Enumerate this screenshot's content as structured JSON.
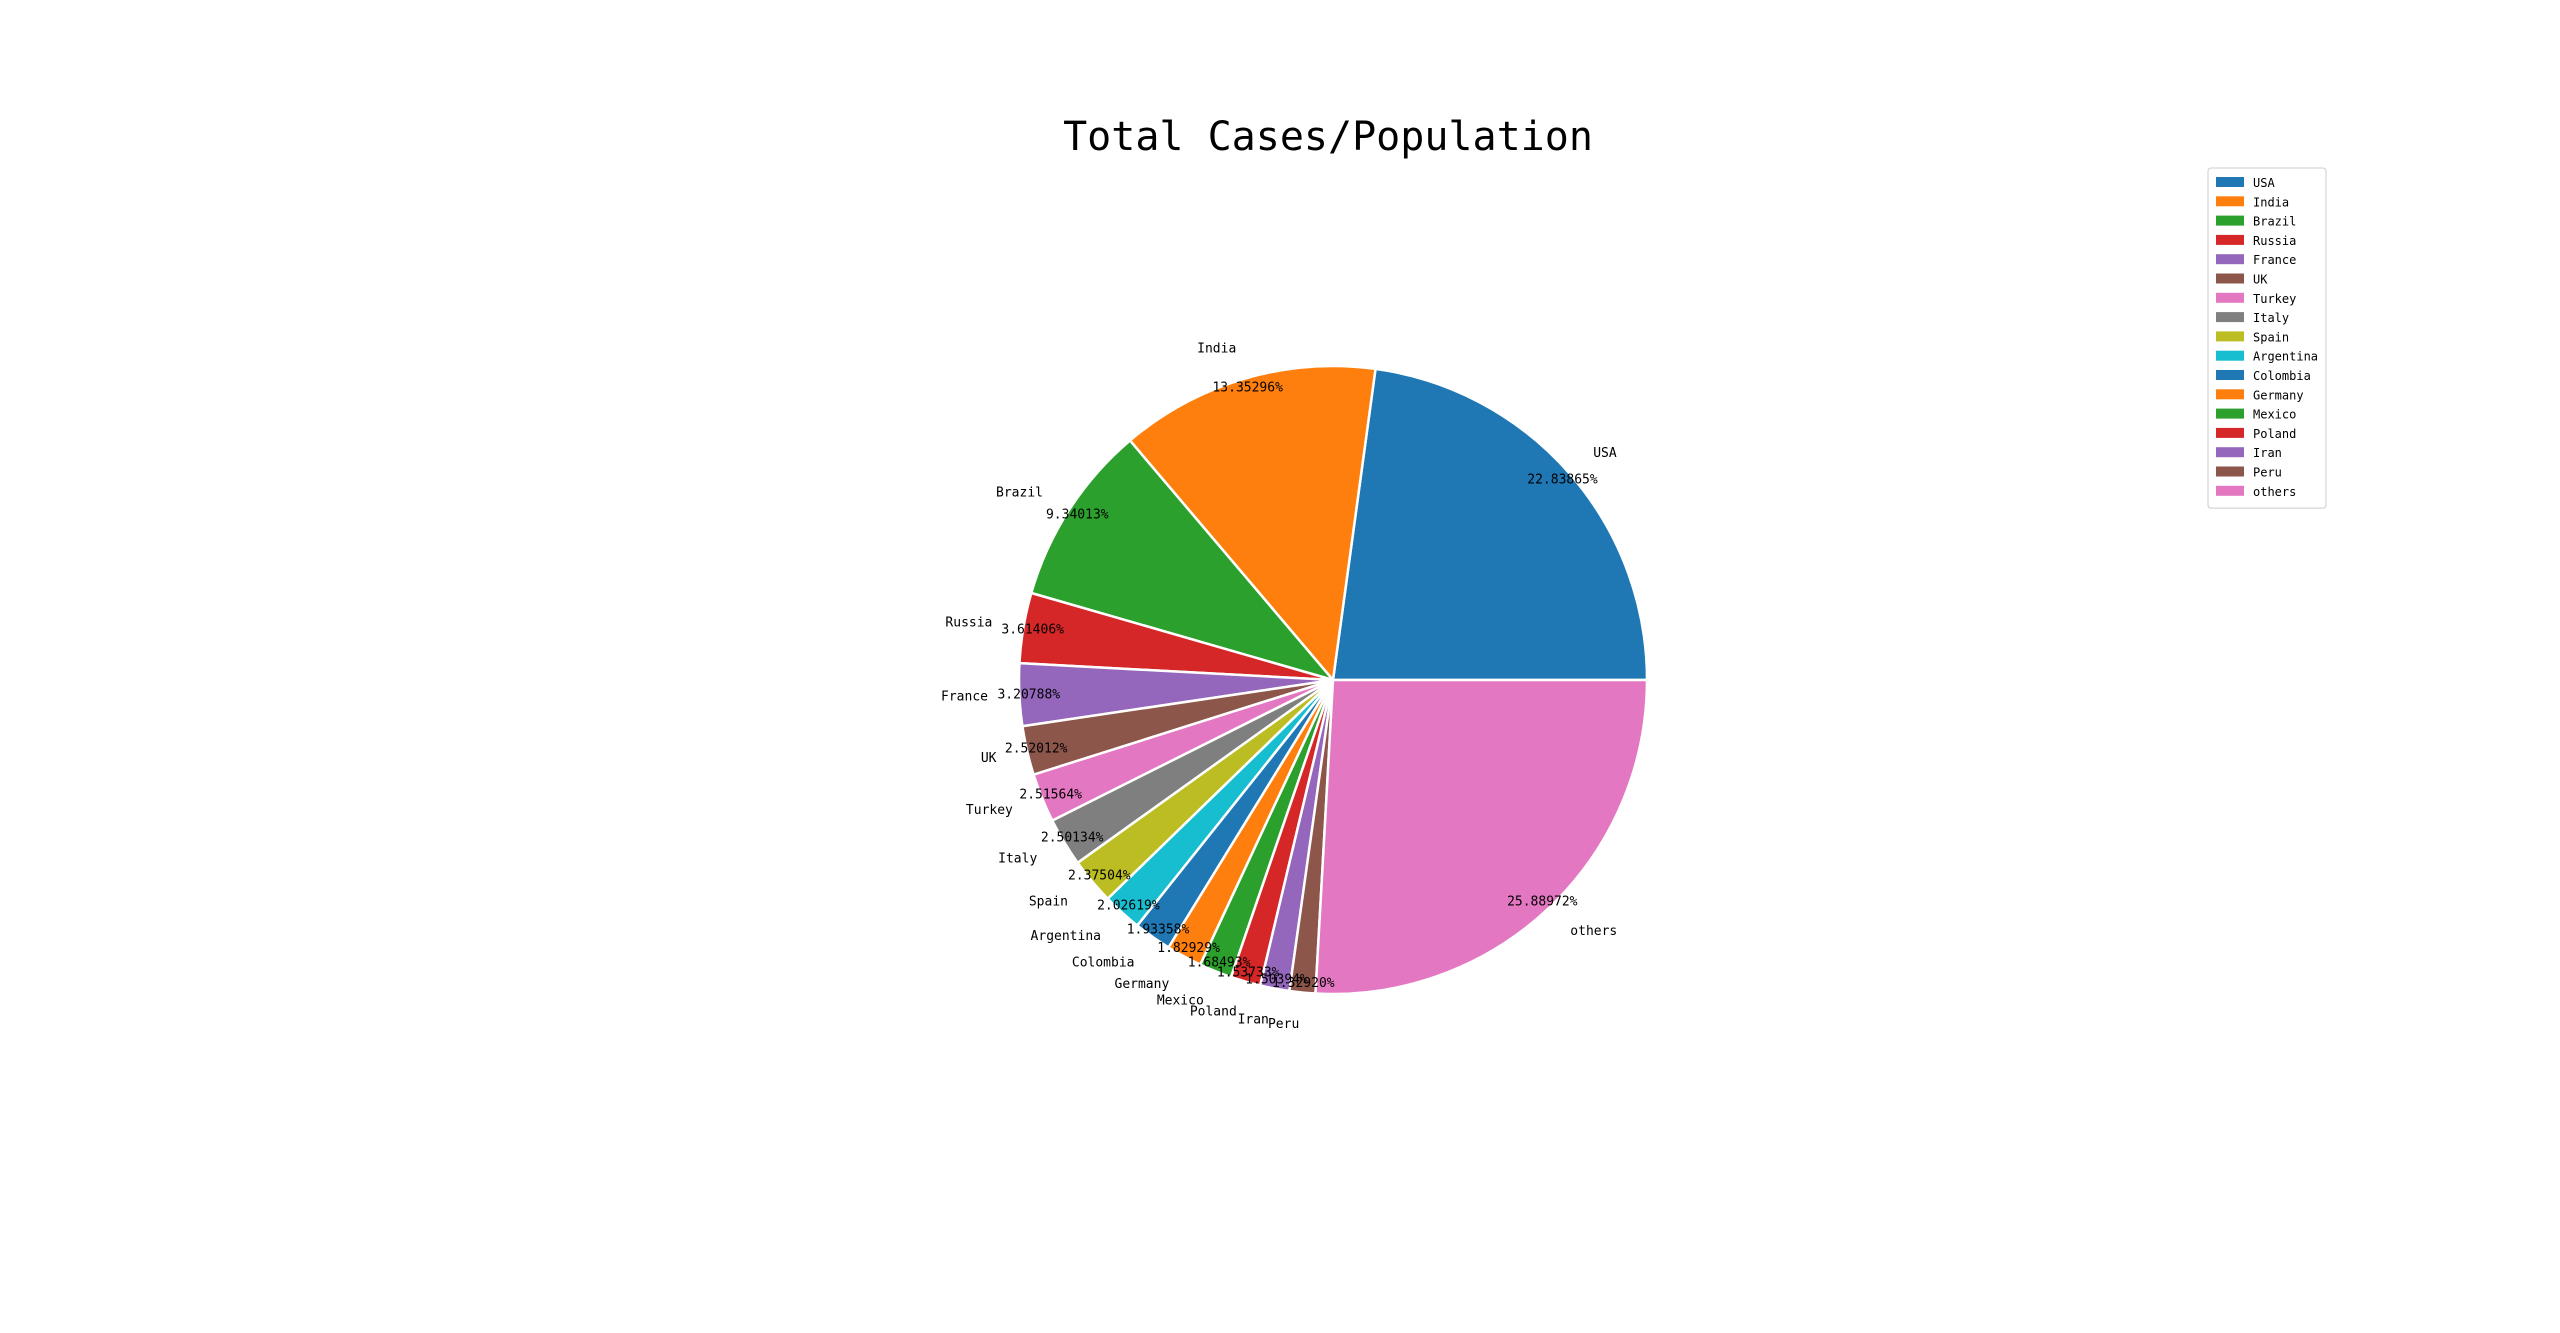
{
  "chart_data": {
    "type": "pie",
    "title": "Total Cases/Population",
    "legend_position": "top-right",
    "start_angle_deg": 0,
    "direction": "counterclockwise",
    "slices": [
      {
        "label": "USA",
        "value": 22.83865,
        "pct_label": "22.83865%",
        "color": "#1f77b4"
      },
      {
        "label": "India",
        "value": 13.35296,
        "pct_label": "13.35296%",
        "color": "#ff7f0e"
      },
      {
        "label": "Brazil",
        "value": 9.34013,
        "pct_label": "9.34013%",
        "color": "#2ca02c"
      },
      {
        "label": "Russia",
        "value": 3.61406,
        "pct_label": "3.61406%",
        "color": "#d62728"
      },
      {
        "label": "France",
        "value": 3.20788,
        "pct_label": "3.20788%",
        "color": "#9467bd"
      },
      {
        "label": "UK",
        "value": 2.52012,
        "pct_label": "2.52012%",
        "color": "#8c564b"
      },
      {
        "label": "Turkey",
        "value": 2.51564,
        "pct_label": "2.51564%",
        "color": "#e377c2"
      },
      {
        "label": "Italy",
        "value": 2.50134,
        "pct_label": "2.50134%",
        "color": "#7f7f7f"
      },
      {
        "label": "Spain",
        "value": 2.37504,
        "pct_label": "2.37504%",
        "color": "#bcbd22"
      },
      {
        "label": "Argentina",
        "value": 2.02619,
        "pct_label": "2.02619%",
        "color": "#17becf"
      },
      {
        "label": "Colombia",
        "value": 1.93358,
        "pct_label": "1.93358%",
        "color": "#1f77b4"
      },
      {
        "label": "Germany",
        "value": 1.82929,
        "pct_label": "1.82929%",
        "color": "#ff7f0e"
      },
      {
        "label": "Mexico",
        "value": 1.68493,
        "pct_label": "1.68493%",
        "color": "#2ca02c"
      },
      {
        "label": "Poland",
        "value": 1.53733,
        "pct_label": "1.53733%",
        "color": "#d62728"
      },
      {
        "label": "Iran",
        "value": 1.50394,
        "pct_label": "1.50394%",
        "color": "#9467bd"
      },
      {
        "label": "Peru",
        "value": 1.3292,
        "pct_label": "1.32920%",
        "color": "#8c564b"
      },
      {
        "label": "others",
        "value": 25.88972,
        "pct_label": "25.88972%",
        "color": "#e377c2"
      }
    ]
  }
}
